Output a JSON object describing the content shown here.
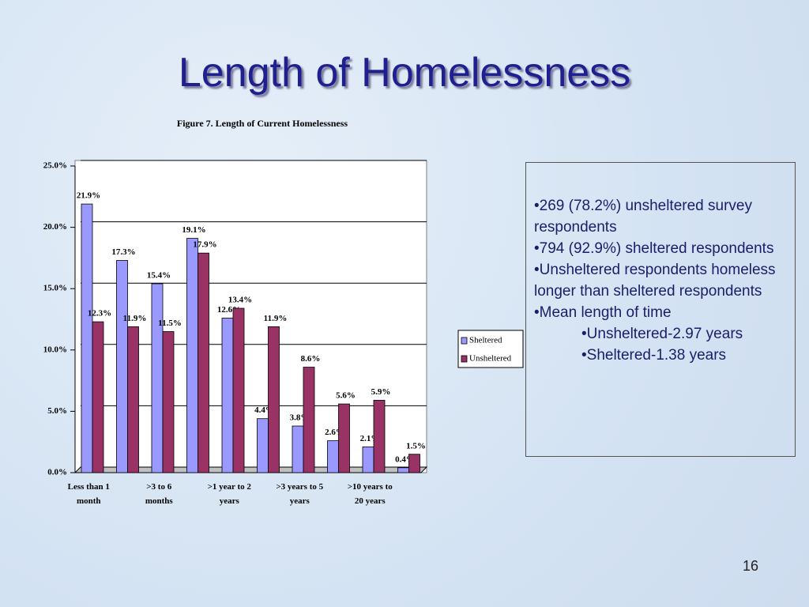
{
  "title": "Length of Homelessness",
  "page_number": "16",
  "text_box": {
    "bullets": [
      "•269 (78.2%) unsheltered survey respondents",
      "•794 (92.9%) sheltered respondents",
      "•Unsheltered respondents homeless longer than sheltered respondents",
      "•Mean length of time"
    ],
    "sub_bullets": [
      "•Unsheltered-2.97 years",
      "•Sheltered-1.38 years"
    ]
  },
  "chart_data": {
    "type": "bar",
    "title": "Figure 7.  Length of Current Homelessness",
    "categories": [
      "Less than 1 month",
      null,
      ">3 to 6 months",
      null,
      ">1 year to 2 years",
      null,
      ">3 years to 5 years",
      null,
      ">10 years to 20 years",
      null
    ],
    "series": [
      {
        "name": "Sheltered",
        "color": "#9999ff",
        "values": [
          21.9,
          17.3,
          15.4,
          19.1,
          12.6,
          4.4,
          3.8,
          2.6,
          2.1,
          0.4
        ],
        "value_labels": [
          "21.9%",
          "17.3%",
          "15.4%",
          "19.1%",
          "12.6%",
          "4.4%",
          "3.8%",
          "2.6%",
          "2.1%",
          "0.4%"
        ]
      },
      {
        "name": "Unsheltered",
        "color": "#993366",
        "values": [
          12.3,
          11.9,
          11.5,
          17.9,
          13.4,
          11.9,
          8.6,
          5.6,
          5.9,
          1.5
        ],
        "value_labels": [
          "12.3%",
          "11.9%",
          "11.5%",
          "17.9%",
          "13.4%",
          "11.9%",
          "8.6%",
          "5.6%",
          "5.9%",
          "1.5%"
        ]
      }
    ],
    "ylim": [
      0,
      25
    ],
    "yticks": [
      {
        "value": 0,
        "label": "0.0%"
      },
      {
        "value": 5,
        "label": "5.0%"
      },
      {
        "value": 10,
        "label": "10.0%"
      },
      {
        "value": 15,
        "label": "15.0%"
      },
      {
        "value": 20,
        "label": "20.0%"
      },
      {
        "value": 25,
        "label": "25.0%"
      }
    ],
    "grid": true,
    "legend": "right"
  }
}
